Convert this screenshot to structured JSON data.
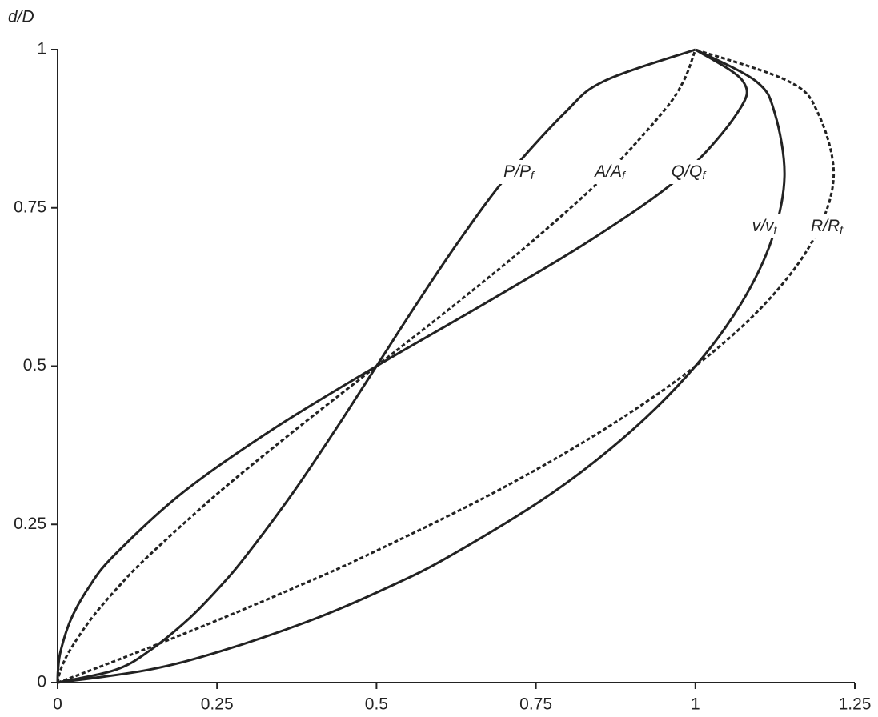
{
  "chart_data": {
    "type": "line",
    "y_label": "d/D",
    "xlim": [
      0,
      1.25
    ],
    "xticks": [
      0,
      0.25,
      0.5,
      0.75,
      1,
      1.25
    ],
    "ylim": [
      0,
      1
    ],
    "yticks": [
      0,
      0.25,
      0.5,
      0.75,
      1
    ],
    "color": "#222222",
    "series": [
      {
        "name": "P/P",
        "name_sub": "f",
        "dashed": false,
        "x": [
          0,
          0.0903,
          0.1436,
          0.2048,
          0.2532,
          0.2952,
          0.369,
          0.4359,
          0.5,
          0.5641,
          0.631,
          0.7048,
          0.7952,
          0.8564,
          1
        ],
        "values": [
          0,
          0.02,
          0.05,
          0.1,
          0.15,
          0.2,
          0.3,
          0.4,
          0.5,
          0.6,
          0.7,
          0.8,
          0.9,
          0.95,
          1
        ]
      },
      {
        "name": "A/A",
        "name_sub": "f",
        "dashed": true,
        "x": [
          0,
          0.0048,
          0.0187,
          0.052,
          0.0941,
          0.1424,
          0.2523,
          0.3735,
          0.5,
          0.6265,
          0.7477,
          0.8576,
          0.948,
          0.9813,
          1
        ],
        "values": [
          0,
          0.02,
          0.05,
          0.1,
          0.15,
          0.2,
          0.3,
          0.4,
          0.5,
          0.6,
          0.7,
          0.8,
          0.9,
          0.95,
          1
        ]
      },
      {
        "name": "Q/Q",
        "name_sub": "f",
        "dashed": false,
        "x": [
          0,
          0.0007,
          0.0048,
          0.0209,
          0.0486,
          0.0876,
          0.1958,
          0.337,
          0.5,
          0.6718,
          0.8373,
          0.9774,
          1.0658,
          1.0745,
          1
        ],
        "values": [
          0,
          0.02,
          0.05,
          0.1,
          0.15,
          0.2,
          0.3,
          0.4,
          0.5,
          0.6,
          0.7,
          0.8,
          0.9,
          0.95,
          1
        ]
      },
      {
        "name": "v/v",
        "name_sub": "f",
        "dashed": false,
        "x": [
          0,
          0.1414,
          0.2569,
          0.4012,
          0.5168,
          0.6151,
          0.7762,
          0.9022,
          1,
          1.0724,
          1.1198,
          1.1397,
          1.1243,
          1.095,
          1
        ],
        "values": [
          0,
          0.02,
          0.05,
          0.1,
          0.15,
          0.2,
          0.3,
          0.4,
          0.5,
          0.6,
          0.7,
          0.8,
          0.9,
          0.95,
          1
        ]
      },
      {
        "name": "R/R",
        "name_sub": "f",
        "dashed": true,
        "x": [
          0,
          0.0532,
          0.1302,
          0.2541,
          0.3715,
          0.4824,
          0.6838,
          0.8569,
          1,
          1.1106,
          1.1849,
          1.2168,
          1.1921,
          1.1458,
          1
        ],
        "values": [
          0,
          0.02,
          0.05,
          0.1,
          0.15,
          0.2,
          0.3,
          0.4,
          0.5,
          0.6,
          0.7,
          0.8,
          0.9,
          0.95,
          1
        ]
      }
    ]
  }
}
